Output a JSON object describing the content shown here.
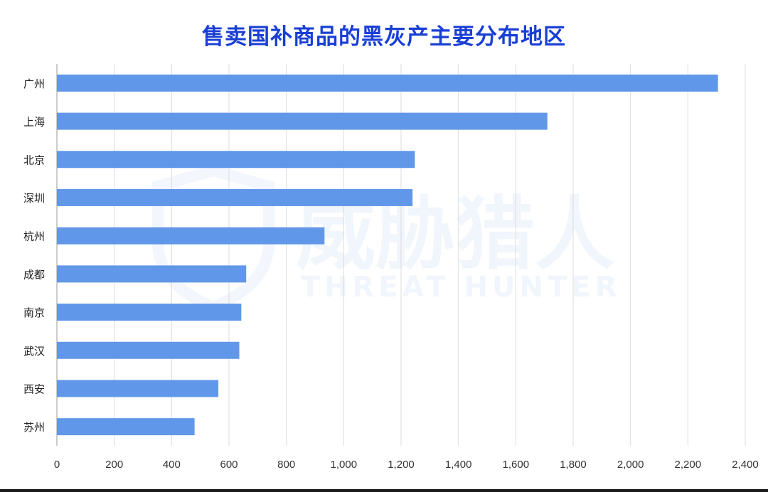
{
  "chart_data": {
    "type": "bar",
    "orientation": "horizontal",
    "title": "售卖国补商品的黑灰产主要分布地区",
    "categories": [
      "广州",
      "上海",
      "北京",
      "深圳",
      "杭州",
      "成都",
      "南京",
      "武汉",
      "西安",
      "苏州"
    ],
    "values": [
      2305,
      1710,
      1248,
      1240,
      933,
      660,
      643,
      636,
      563,
      480
    ],
    "xlim": [
      0,
      2400
    ],
    "xticks": [
      0,
      200,
      400,
      600,
      800,
      1000,
      1200,
      1400,
      1600,
      1800,
      2000,
      2200,
      2400
    ],
    "xtick_labels": [
      "0",
      "200",
      "400",
      "600",
      "800",
      "1,000",
      "1,200",
      "1,400",
      "1,600",
      "1,800",
      "2,000",
      "2,200",
      "2,400"
    ],
    "grid": true,
    "bar_color": "#6197e8",
    "xlabel": "",
    "ylabel": ""
  },
  "watermark": {
    "text_cn": "威胁猎人",
    "text_en": "THREAT HUNTER"
  }
}
